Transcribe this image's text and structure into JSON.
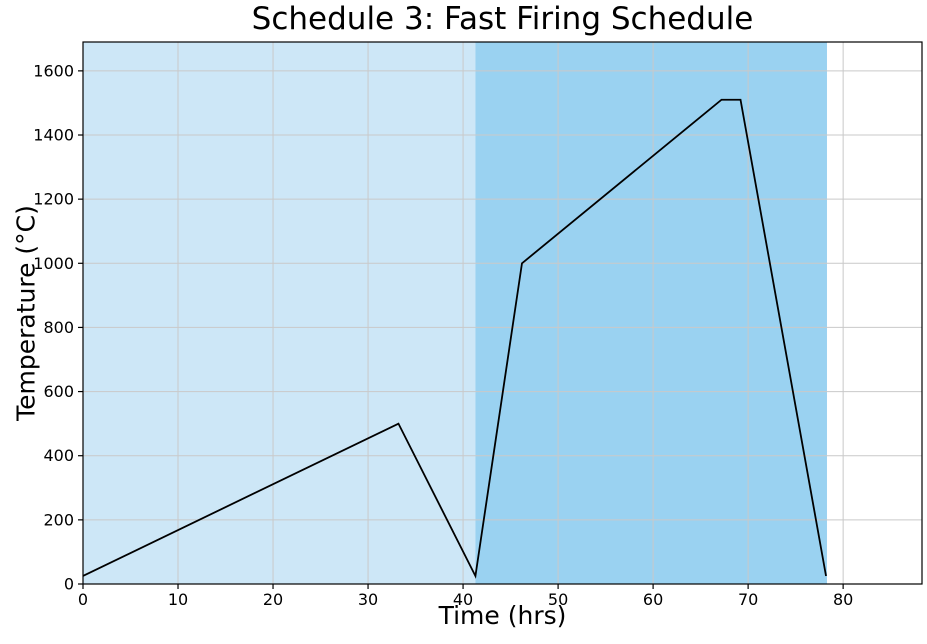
{
  "figure": {
    "kind": "matplotlib-style line chart",
    "background_color": "#ffffff"
  },
  "chart_data": {
    "type": "line",
    "title": "Schedule 3: Fast Firing Schedule",
    "xlabel": "Time (hrs)",
    "ylabel": "Temperature (°C)",
    "xlim": [
      0,
      88.3
    ],
    "ylim": [
      0,
      1690
    ],
    "x_ticks": [
      0,
      10,
      20,
      30,
      40,
      50,
      60,
      70,
      80
    ],
    "y_ticks": [
      0,
      200,
      400,
      600,
      800,
      1000,
      1200,
      1400,
      1600
    ],
    "grid": true,
    "legend": "none",
    "series": [
      {
        "name": "firing-temperature-profile",
        "color": "#000000",
        "line_width": 1.8,
        "points": [
          [
            0,
            25
          ],
          [
            33.2,
            500
          ],
          [
            41.3,
            25
          ],
          [
            46.2,
            1000
          ],
          [
            67.2,
            1510
          ],
          [
            69.2,
            1510
          ],
          [
            78.2,
            25
          ]
        ]
      }
    ],
    "regions": [
      {
        "name": "phase-1-span",
        "x_start": 0,
        "x_end": 41.3,
        "color": "#cde7f7"
      },
      {
        "name": "phase-2-span",
        "x_start": 41.3,
        "x_end": 78.3,
        "color": "#9ad2f1"
      }
    ],
    "colors": {
      "grid": "#c9c9c9",
      "spine": "#000000",
      "line": "#000000",
      "background": "#ffffff"
    }
  }
}
